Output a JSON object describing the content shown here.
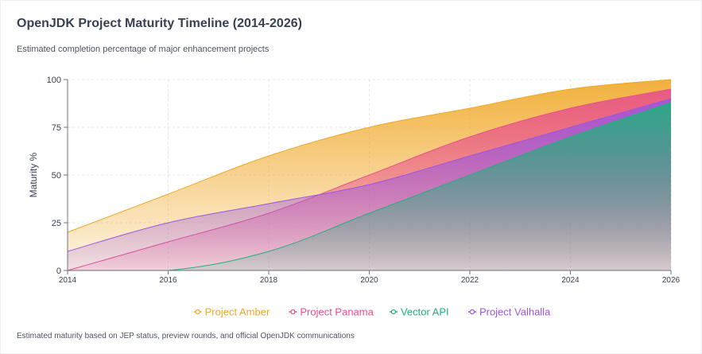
{
  "header": {
    "title": "OpenJDK Project Maturity Timeline (2014-2026)",
    "subtitle": "Estimated completion percentage of major enhancement projects"
  },
  "footer": {
    "note": "Estimated maturity based on JEP status, preview rounds, and official OpenJDK communications"
  },
  "chart_data": {
    "type": "area",
    "title": "OpenJDK Project Maturity Timeline (2014-2026)",
    "subtitle": "Estimated completion percentage of major enhancement projects",
    "xlabel": "",
    "ylabel": "Maturity %",
    "x": [
      2014,
      2016,
      2018,
      2020,
      2022,
      2024,
      2026
    ],
    "x_ticks": [
      "2014",
      "2016",
      "2018",
      "2020",
      "2022",
      "2024",
      "2026"
    ],
    "xlim": [
      2014,
      2026
    ],
    "ylim": [
      0,
      100
    ],
    "y_ticks": [
      "0",
      "25",
      "50",
      "75",
      "100"
    ],
    "grid": true,
    "legend_position": "bottom",
    "series": [
      {
        "name": "Project Amber",
        "color": "#f0a827",
        "values": [
          20,
          40,
          60,
          75,
          85,
          95,
          100
        ]
      },
      {
        "name": "Project Panama",
        "color": "#e8508b",
        "values": [
          0,
          15,
          30,
          50,
          70,
          85,
          95
        ]
      },
      {
        "name": "Project Valhalla",
        "color": "#9d56e0",
        "values": [
          10,
          25,
          35,
          45,
          60,
          75,
          90
        ]
      },
      {
        "name": "Vector API",
        "color": "#22b07d",
        "values": [
          0,
          0,
          10,
          30,
          50,
          70,
          88
        ]
      }
    ],
    "legend_order": [
      "Project Amber",
      "Project Panama",
      "Vector API",
      "Project Valhalla"
    ]
  }
}
